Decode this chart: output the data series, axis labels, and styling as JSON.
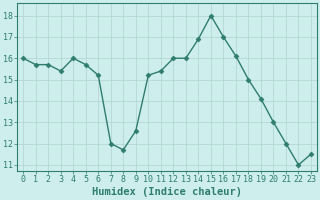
{
  "x": [
    0,
    1,
    2,
    3,
    4,
    5,
    6,
    7,
    8,
    9,
    10,
    11,
    12,
    13,
    14,
    15,
    16,
    17,
    18,
    19,
    20,
    21,
    22,
    23
  ],
  "y": [
    16.0,
    15.7,
    15.7,
    15.4,
    16.0,
    15.7,
    15.2,
    12.0,
    11.7,
    12.6,
    15.2,
    15.4,
    16.0,
    16.0,
    16.9,
    18.0,
    17.0,
    16.1,
    15.0,
    14.1,
    13.0,
    12.0,
    11.0,
    11.5
  ],
  "xlabel": "Humidex (Indice chaleur)",
  "xlim": [
    -0.5,
    23.5
  ],
  "ylim": [
    10.7,
    18.6
  ],
  "yticks": [
    11,
    12,
    13,
    14,
    15,
    16,
    17,
    18
  ],
  "xticks": [
    0,
    1,
    2,
    3,
    4,
    5,
    6,
    7,
    8,
    9,
    10,
    11,
    12,
    13,
    14,
    15,
    16,
    17,
    18,
    19,
    20,
    21,
    22,
    23
  ],
  "line_color": "#2e7d6e",
  "marker": "D",
  "marker_size": 2.5,
  "bg_color": "#ceeeed",
  "grid_color": "#b0d4d0",
  "tick_label_fontsize": 6,
  "xlabel_fontsize": 7.5,
  "linewidth": 1.0
}
